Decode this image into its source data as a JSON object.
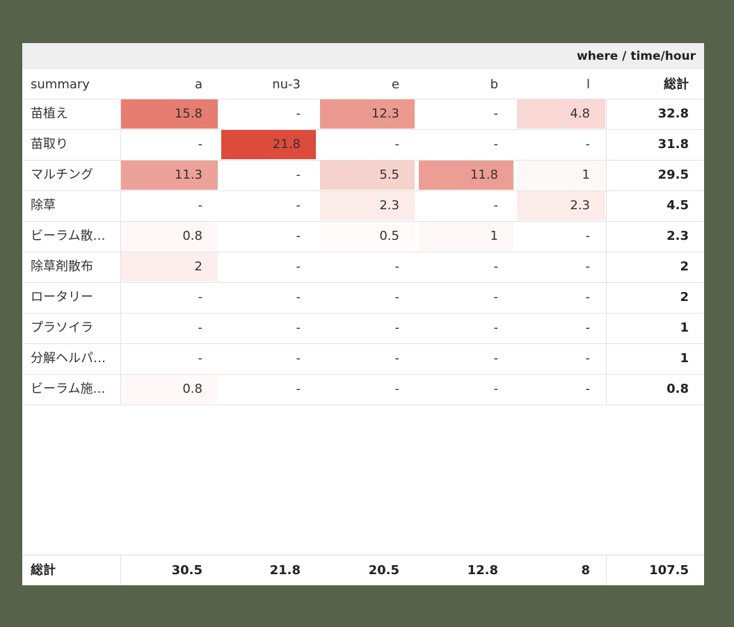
{
  "chart_data": {
    "type": "table",
    "title": "where / time/hour",
    "corner_label": "summary",
    "columns": [
      "a",
      "nu-3",
      "e",
      "b",
      "l"
    ],
    "total_label": "総計",
    "rows": [
      {
        "label": "苗植え",
        "values": [
          15.8,
          null,
          12.3,
          null,
          4.8
        ],
        "total": "32.8"
      },
      {
        "label": "苗取り",
        "values": [
          null,
          21.8,
          null,
          null,
          null
        ],
        "total": "31.8"
      },
      {
        "label": "マルチング",
        "values": [
          11.3,
          null,
          5.5,
          11.8,
          1
        ],
        "total": "29.5"
      },
      {
        "label": "除草",
        "values": [
          null,
          null,
          2.3,
          null,
          2.3
        ],
        "total": "4.5"
      },
      {
        "label": "ビーラム散…",
        "values": [
          0.8,
          null,
          0.5,
          1,
          null
        ],
        "total": "2.3"
      },
      {
        "label": "除草剤散布",
        "values": [
          2,
          null,
          null,
          null,
          null
        ],
        "total": "2"
      },
      {
        "label": "ロータリー",
        "values": [
          null,
          null,
          null,
          null,
          null
        ],
        "total": "2"
      },
      {
        "label": "プラソイラ",
        "values": [
          null,
          null,
          null,
          null,
          null
        ],
        "total": "1"
      },
      {
        "label": "分解ヘルパ…",
        "values": [
          null,
          null,
          null,
          null,
          null
        ],
        "total": "1"
      },
      {
        "label": "ビーラム施…",
        "values": [
          0.8,
          null,
          null,
          null,
          null
        ],
        "total": "0.8"
      }
    ],
    "column_totals": [
      "30.5",
      "21.8",
      "20.5",
      "12.8",
      "8"
    ],
    "grand_total": "107.5",
    "empty_marker": "-",
    "heatmap": {
      "max": 21.8,
      "low_color": "#ffffff",
      "high_color": "#dd4b3a"
    }
  }
}
